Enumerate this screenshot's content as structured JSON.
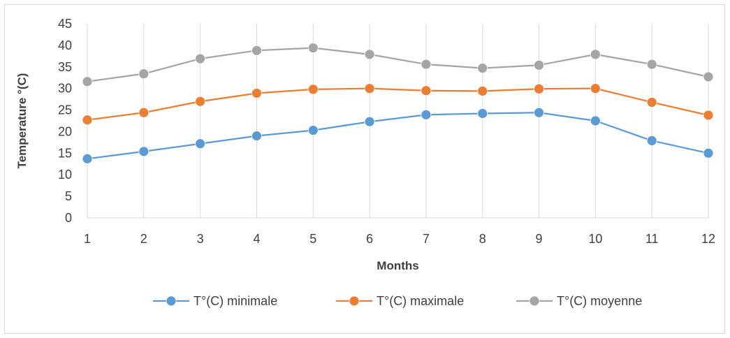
{
  "chart_data": {
    "type": "line",
    "title": "",
    "xlabel": "Months",
    "ylabel": "Temperature °(C)",
    "x": [
      1,
      2,
      3,
      4,
      5,
      6,
      7,
      8,
      9,
      10,
      11,
      12
    ],
    "ylim": [
      0,
      45
    ],
    "yticks": [
      0,
      5,
      10,
      15,
      20,
      25,
      30,
      35,
      40,
      45
    ],
    "grid": "vertical",
    "legend_position": "bottom",
    "series": [
      {
        "name": "T°(C) minimale",
        "color": "#5b9bd5",
        "values": [
          13.7,
          15.4,
          17.2,
          19.0,
          20.3,
          22.3,
          23.9,
          24.2,
          24.4,
          22.5,
          17.9,
          15.0
        ]
      },
      {
        "name": "T°(C) maximale",
        "color": "#ed7d31",
        "values": [
          22.7,
          24.4,
          27.0,
          28.9,
          29.8,
          30.0,
          29.5,
          29.4,
          29.9,
          30.0,
          26.8,
          23.8
        ]
      },
      {
        "name": "T°(C) moyenne",
        "color": "#a5a5a5",
        "values": [
          31.6,
          33.4,
          36.9,
          38.8,
          39.4,
          37.9,
          35.6,
          34.7,
          35.4,
          37.9,
          35.6,
          32.7
        ]
      }
    ]
  }
}
